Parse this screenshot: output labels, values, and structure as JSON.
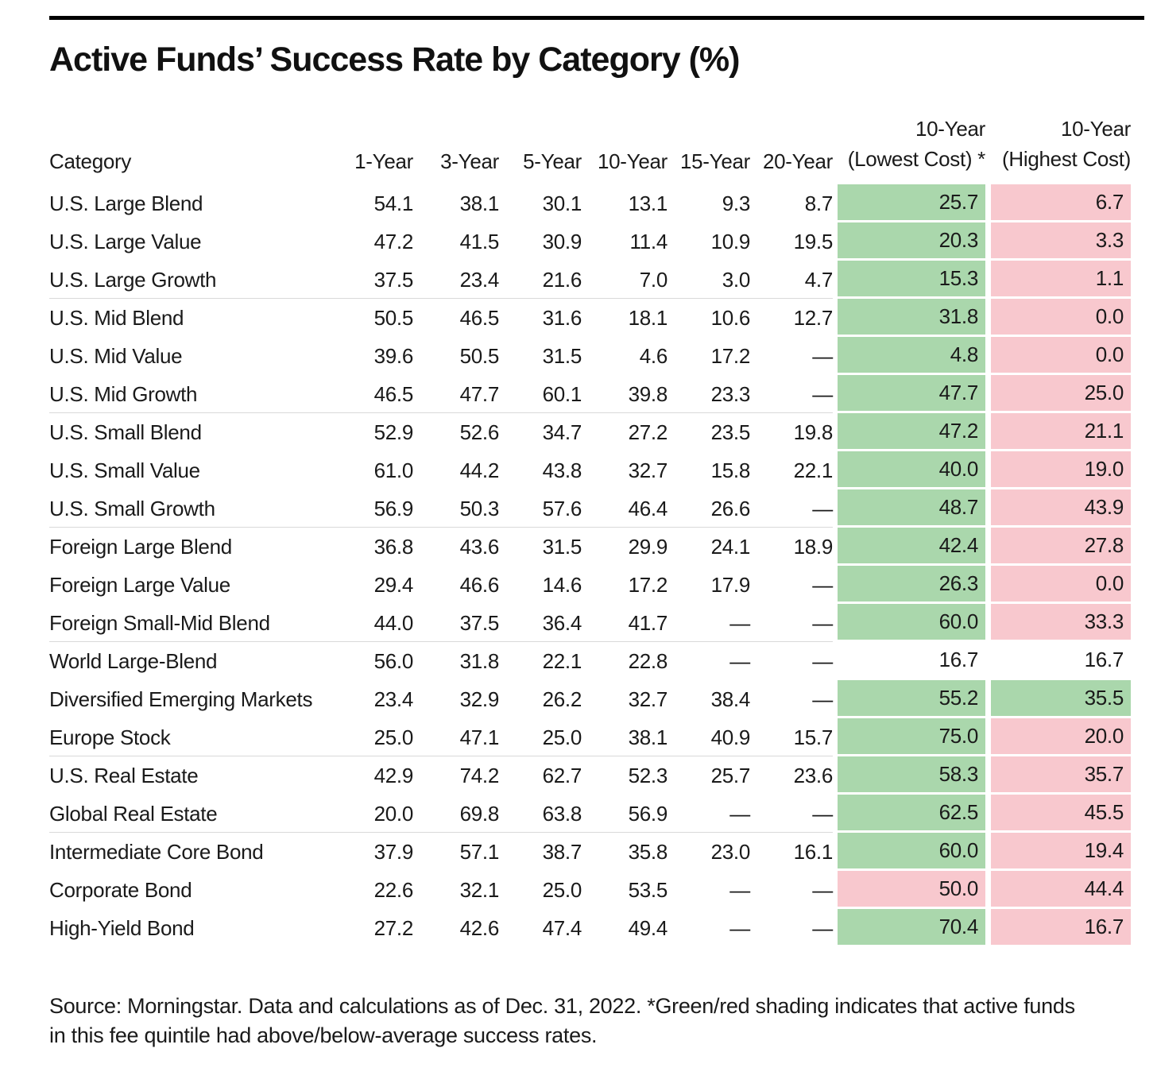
{
  "title": "Active Funds’ Success Rate by Category (%)",
  "table_header": {
    "category": "Category",
    "periods": [
      "1-Year",
      "3-Year",
      "5-Year",
      "10-Year",
      "15-Year",
      "20-Year"
    ],
    "lowest_cost": {
      "line1": "10-Year",
      "line2": "(Lowest Cost) *"
    },
    "highest_cost": {
      "line1": "10-Year",
      "line2": "(Highest Cost)"
    }
  },
  "footer": {
    "line1": "Source: Morningstar. Data and calculations as of Dec. 31, 2022. *Green/red shading indicates that active funds",
    "line2": "in this fee quintile had above/below-average success rates."
  },
  "colors": {
    "green_shade": "#aad7ac",
    "red_shade": "#f8c8ce",
    "separator_gray": "#d9d9d9",
    "rule_black": "#000000"
  },
  "chart_data": {
    "type": "table",
    "title": "Active Funds’ Success Rate by Category (%)",
    "columns": [
      "Category",
      "1-Year",
      "3-Year",
      "5-Year",
      "10-Year",
      "15-Year",
      "20-Year",
      "10-Year (Lowest Cost) *",
      "10-Year (Highest Cost)"
    ],
    "shading_legend": "Green/red shading indicates that active funds in this fee quintile had above/below-average success rates",
    "rows": [
      {
        "category": "U.S. Large Blend",
        "values": [
          "54.1",
          "38.1",
          "30.1",
          "13.1",
          "9.3",
          "8.7"
        ],
        "lowest_cost": "25.7",
        "lowest_shade": "green",
        "highest_cost": "6.7",
        "highest_shade": "red",
        "group_start": false
      },
      {
        "category": "U.S. Large Value",
        "values": [
          "47.2",
          "41.5",
          "30.9",
          "11.4",
          "10.9",
          "19.5"
        ],
        "lowest_cost": "20.3",
        "lowest_shade": "green",
        "highest_cost": "3.3",
        "highest_shade": "red",
        "group_start": false
      },
      {
        "category": "U.S. Large Growth",
        "values": [
          "37.5",
          "23.4",
          "21.6",
          "7.0",
          "3.0",
          "4.7"
        ],
        "lowest_cost": "15.3",
        "lowest_shade": "green",
        "highest_cost": "1.1",
        "highest_shade": "red",
        "group_start": false
      },
      {
        "category": "U.S. Mid Blend",
        "values": [
          "50.5",
          "46.5",
          "31.6",
          "18.1",
          "10.6",
          "12.7"
        ],
        "lowest_cost": "31.8",
        "lowest_shade": "green",
        "highest_cost": "0.0",
        "highest_shade": "red",
        "group_start": true
      },
      {
        "category": "U.S. Mid Value",
        "values": [
          "39.6",
          "50.5",
          "31.5",
          "4.6",
          "17.2",
          "—"
        ],
        "lowest_cost": "4.8",
        "lowest_shade": "green",
        "highest_cost": "0.0",
        "highest_shade": "red",
        "group_start": false
      },
      {
        "category": "U.S. Mid Growth",
        "values": [
          "46.5",
          "47.7",
          "60.1",
          "39.8",
          "23.3",
          "—"
        ],
        "lowest_cost": "47.7",
        "lowest_shade": "green",
        "highest_cost": "25.0",
        "highest_shade": "red",
        "group_start": false
      },
      {
        "category": "U.S. Small Blend",
        "values": [
          "52.9",
          "52.6",
          "34.7",
          "27.2",
          "23.5",
          "19.8"
        ],
        "lowest_cost": "47.2",
        "lowest_shade": "green",
        "highest_cost": "21.1",
        "highest_shade": "red",
        "group_start": true
      },
      {
        "category": "U.S. Small Value",
        "values": [
          "61.0",
          "44.2",
          "43.8",
          "32.7",
          "15.8",
          "22.1"
        ],
        "lowest_cost": "40.0",
        "lowest_shade": "green",
        "highest_cost": "19.0",
        "highest_shade": "red",
        "group_start": false
      },
      {
        "category": "U.S. Small Growth",
        "values": [
          "56.9",
          "50.3",
          "57.6",
          "46.4",
          "26.6",
          "—"
        ],
        "lowest_cost": "48.7",
        "lowest_shade": "green",
        "highest_cost": "43.9",
        "highest_shade": "red",
        "group_start": false
      },
      {
        "category": "Foreign Large Blend",
        "values": [
          "36.8",
          "43.6",
          "31.5",
          "29.9",
          "24.1",
          "18.9"
        ],
        "lowest_cost": "42.4",
        "lowest_shade": "green",
        "highest_cost": "27.8",
        "highest_shade": "red",
        "group_start": true
      },
      {
        "category": "Foreign Large Value",
        "values": [
          "29.4",
          "46.6",
          "14.6",
          "17.2",
          "17.9",
          "—"
        ],
        "lowest_cost": "26.3",
        "lowest_shade": "green",
        "highest_cost": "0.0",
        "highest_shade": "red",
        "group_start": false
      },
      {
        "category": "Foreign Small-Mid Blend",
        "values": [
          "44.0",
          "37.5",
          "36.4",
          "41.7",
          "—",
          "—"
        ],
        "lowest_cost": "60.0",
        "lowest_shade": "green",
        "highest_cost": "33.3",
        "highest_shade": "red",
        "group_start": false
      },
      {
        "category": "World Large-Blend",
        "values": [
          "56.0",
          "31.8",
          "22.1",
          "22.8",
          "—",
          "—"
        ],
        "lowest_cost": "16.7",
        "lowest_shade": "none",
        "highest_cost": "16.7",
        "highest_shade": "none",
        "group_start": true
      },
      {
        "category": "Diversified Emerging Markets",
        "values": [
          "23.4",
          "32.9",
          "26.2",
          "32.7",
          "38.4",
          "—"
        ],
        "lowest_cost": "55.2",
        "lowest_shade": "green",
        "highest_cost": "35.5",
        "highest_shade": "green",
        "group_start": false
      },
      {
        "category": "Europe Stock",
        "values": [
          "25.0",
          "47.1",
          "25.0",
          "38.1",
          "40.9",
          "15.7"
        ],
        "lowest_cost": "75.0",
        "lowest_shade": "green",
        "highest_cost": "20.0",
        "highest_shade": "red",
        "group_start": false
      },
      {
        "category": "U.S. Real Estate",
        "values": [
          "42.9",
          "74.2",
          "62.7",
          "52.3",
          "25.7",
          "23.6"
        ],
        "lowest_cost": "58.3",
        "lowest_shade": "green",
        "highest_cost": "35.7",
        "highest_shade": "red",
        "group_start": true
      },
      {
        "category": "Global Real Estate",
        "values": [
          "20.0",
          "69.8",
          "63.8",
          "56.9",
          "—",
          "—"
        ],
        "lowest_cost": "62.5",
        "lowest_shade": "green",
        "highest_cost": "45.5",
        "highest_shade": "red",
        "group_start": false
      },
      {
        "category": "Intermediate Core Bond",
        "values": [
          "37.9",
          "57.1",
          "38.7",
          "35.8",
          "23.0",
          "16.1"
        ],
        "lowest_cost": "60.0",
        "lowest_shade": "green",
        "highest_cost": "19.4",
        "highest_shade": "red",
        "group_start": true
      },
      {
        "category": "Corporate Bond",
        "values": [
          "22.6",
          "32.1",
          "25.0",
          "53.5",
          "—",
          "—"
        ],
        "lowest_cost": "50.0",
        "lowest_shade": "red",
        "highest_cost": "44.4",
        "highest_shade": "red",
        "group_start": false
      },
      {
        "category": "High-Yield Bond",
        "values": [
          "27.2",
          "42.6",
          "47.4",
          "49.4",
          "—",
          "—"
        ],
        "lowest_cost": "70.4",
        "lowest_shade": "green",
        "highest_cost": "16.7",
        "highest_shade": "red",
        "group_start": false
      }
    ]
  }
}
